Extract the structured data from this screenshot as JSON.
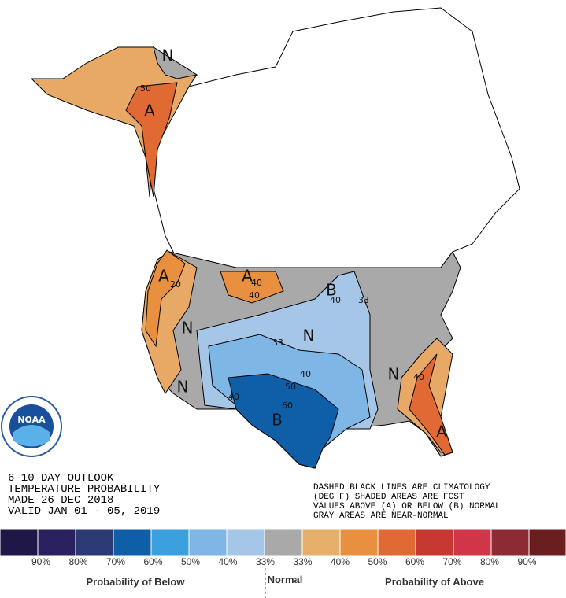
{
  "title_block": {
    "lines": [
      "6-10 DAY OUTLOOK",
      "TEMPERATURE PROBABILITY",
      "MADE  26 DEC 2018",
      "VALID  JAN 01 - 05, 2019"
    ]
  },
  "notes": {
    "lines": [
      "DASHED BLACK LINES ARE CLIMATOLOGY",
      "(DEG F) SHADED AREAS ARE FCST",
      "VALUES ABOVE (A) OR BELOW (B) NORMAL",
      "GRAY AREAS ARE NEAR-NORMAL"
    ]
  },
  "logo": "NOAA",
  "map_labels": [
    "N",
    "A",
    "50",
    "A",
    "20",
    "A",
    "40",
    "40",
    "N",
    "N",
    "B",
    "40",
    "33",
    "N",
    "33",
    "40",
    "50",
    "60",
    "B",
    "40",
    "N",
    "40",
    "A"
  ],
  "legend": {
    "labels": [
      "90%",
      "80%",
      "70%",
      "60%",
      "50%",
      "40%",
      "33%",
      "33%",
      "40%",
      "50%",
      "60%",
      "70%",
      "80%",
      "90%"
    ],
    "below": "Probability of Below",
    "normal": "Normal",
    "above": "Probability of Above"
  }
}
